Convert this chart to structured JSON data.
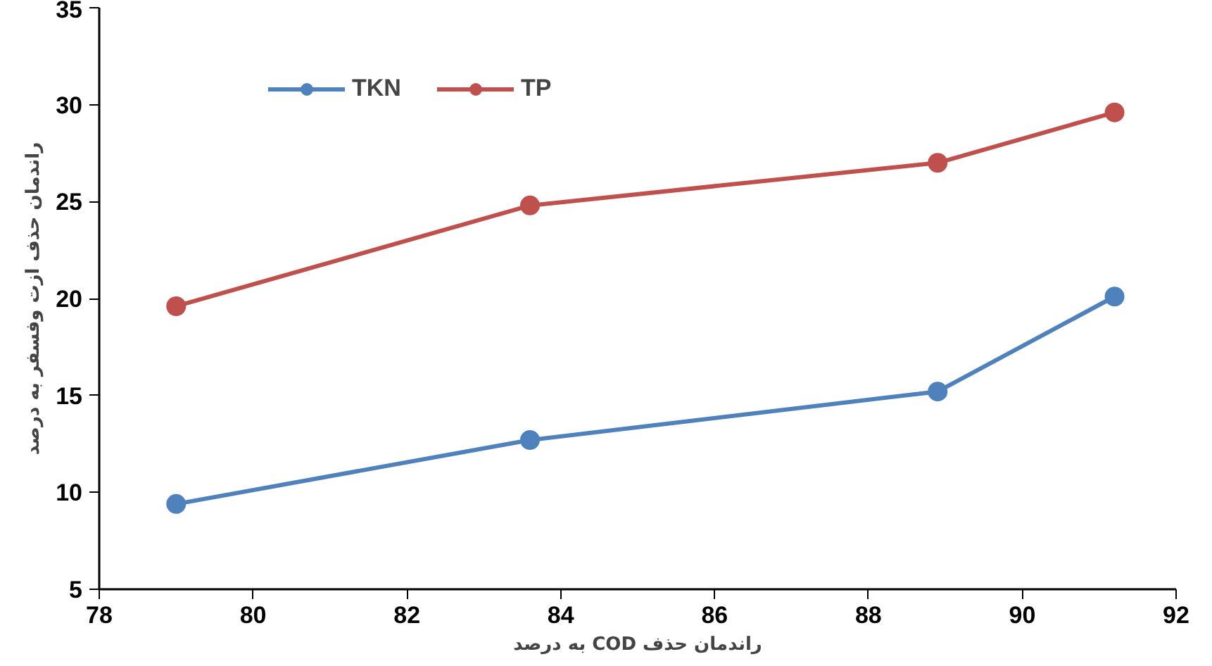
{
  "chart_data": {
    "type": "line",
    "xlabel": "راندمان حذف COD به درصد",
    "ylabel": "راندمان حذف ازت وفسفر به درصد",
    "x": [
      79.0,
      83.6,
      88.9,
      91.2
    ],
    "series": [
      {
        "name": "TKN",
        "color": "#4f81bd",
        "values": [
          9.4,
          12.7,
          15.2,
          20.1
        ]
      },
      {
        "name": "TP",
        "color": "#c0504d",
        "values": [
          19.6,
          24.8,
          27.0,
          29.6
        ]
      }
    ],
    "xlim": [
      78,
      92
    ],
    "xticks": [
      78,
      80,
      82,
      84,
      86,
      88,
      90,
      92
    ],
    "ylim": [
      5,
      35
    ],
    "yticks": [
      5,
      10,
      15,
      20,
      25,
      30,
      35
    ],
    "grid": false,
    "legend": "top left",
    "marker": "circle",
    "line_style": "solid"
  }
}
